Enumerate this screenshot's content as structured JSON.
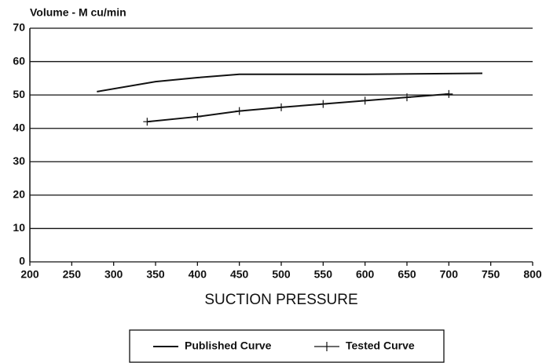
{
  "chart_data": {
    "type": "line",
    "y_axis_label": "Volume - M cu/min",
    "x_axis_label": "SUCTION PRESSURE",
    "xlim": [
      200,
      800
    ],
    "xticks": [
      200,
      250,
      300,
      350,
      400,
      450,
      500,
      550,
      600,
      650,
      700,
      750,
      800
    ],
    "ylim": [
      0,
      70
    ],
    "yticks": [
      0,
      10,
      20,
      30,
      40,
      50,
      60,
      70
    ],
    "grid": true,
    "legend": "bottom",
    "series": [
      {
        "name": "Published Curve",
        "color": "#111111",
        "marker": "none",
        "x": [
          280,
          350,
          400,
          450,
          500,
          600,
          740
        ],
        "values": [
          51,
          54,
          55.2,
          56.2,
          56.2,
          56.2,
          56.5
        ]
      },
      {
        "name": "Tested Curve",
        "color": "#111111",
        "marker": "plus",
        "x": [
          340,
          400,
          450,
          500,
          550,
          600,
          650,
          700
        ],
        "values": [
          42,
          43.5,
          45.2,
          46.3,
          47.3,
          48.3,
          49.3,
          50.3
        ]
      }
    ]
  }
}
